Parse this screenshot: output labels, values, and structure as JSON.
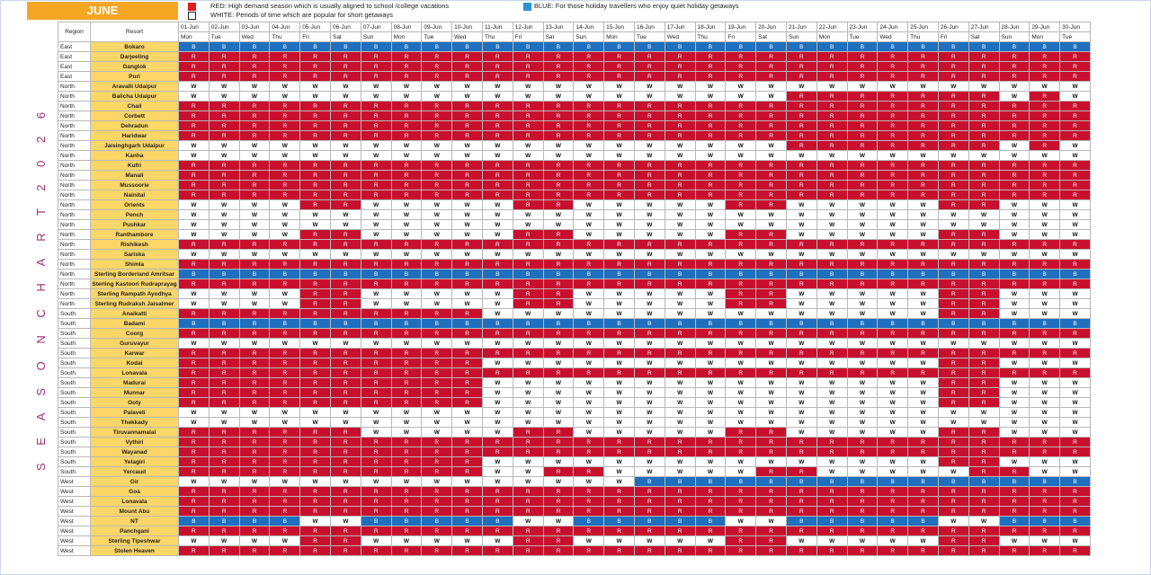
{
  "month": "JUNE",
  "vertical_title": "S E A S O N   C H A R T   2 0 2 6",
  "legend": {
    "red": {
      "text": "RED: High demand season which is usually aligned to school /college vacations",
      "color": "#c8102e"
    },
    "white": {
      "text": "WHITE: Periods of time which are popular for short getaways",
      "color": "#ffffff"
    },
    "blue": {
      "text": "BLUE: For those holiday travellers who enjoy quiet holiday getaways",
      "color": "#1f6fbf"
    }
  },
  "headers": {
    "region": "Region",
    "resort": "Resort"
  },
  "dates": [
    "01-Jun",
    "02-Jun",
    "03-Jun",
    "04-Jun",
    "05-Jun",
    "06-Jun",
    "07-Jun",
    "08-Jun",
    "09-Jun",
    "10-Jun",
    "11-Jun",
    "12-Jun",
    "13-Jun",
    "14-Jun",
    "15-Jun",
    "16-Jun",
    "17-Jun",
    "18-Jun",
    "19-Jun",
    "20-Jun",
    "21-Jun",
    "22-Jun",
    "23-Jun",
    "24-Jun",
    "25-Jun",
    "26-Jun",
    "27-Jun",
    "28-Jun",
    "29-Jun",
    "30-Jun"
  ],
  "days": [
    "Mon",
    "Tue",
    "Wed",
    "Thu",
    "Fri",
    "Sat",
    "Sun",
    "Mon",
    "Tue",
    "Wed",
    "Thu",
    "Fri",
    "Sat",
    "Sun",
    "Mon",
    "Tue",
    "Wed",
    "Thu",
    "Fri",
    "Sat",
    "Sun",
    "Mon",
    "Tue",
    "Wed",
    "Thu",
    "Fri",
    "Sat",
    "Sun",
    "Mon",
    "Tue"
  ],
  "rows": [
    {
      "region": "East",
      "resort": "Bokaro",
      "s": "BBBBBBBBBBBBBBBBBBBBBBBBBBBBBB"
    },
    {
      "region": "East",
      "resort": "Darjeeling",
      "s": "RRRRRRRRRRRRRRRRRRRRRRRRRRRRRR"
    },
    {
      "region": "East",
      "resort": "Gangtok",
      "s": "RRRRRRRRRRRRRRRRRRRRRRRRRRRRRR"
    },
    {
      "region": "East",
      "resort": "Puri",
      "s": "RRRRRRRRRRRRRRRRRRRRRRRRRRRRRR"
    },
    {
      "region": "North",
      "resort": "Aravalli Udaipur",
      "s": "WWWWWWWWWWWWWWWWWWWWWWWWWWWWWW"
    },
    {
      "region": "North",
      "resort": "Balicha Udaipur",
      "s": "WWWWWWWWWWWWWWWWWWWWRRRRRRRWRW"
    },
    {
      "region": "North",
      "resort": "Chail",
      "s": "RRRRRRRRRRRRRRRRRRRRRRRRRRRRRR"
    },
    {
      "region": "North",
      "resort": "Corbett",
      "s": "RRRRRRRRRRRRRRRRRRRRRRRRRRRRRR"
    },
    {
      "region": "North",
      "resort": "Dehradun",
      "s": "RRRRRRRRRRRRRRRRRRRRRRRRRRRRRR"
    },
    {
      "region": "North",
      "resort": "Haridwar",
      "s": "RRRRRRRRRRRRRRRRRRRRRRRRRRRRRR"
    },
    {
      "region": "North",
      "resort": "Jaisinghgarh Udaipur",
      "s": "WWWWWWWWWWWWWWWWWWWWRRRRRRRWRW"
    },
    {
      "region": "North",
      "resort": "Kanha",
      "s": "WWWWWWWWWWWWWWWWWWWWWWWWWWWWWW"
    },
    {
      "region": "North",
      "resort": "Kufri",
      "s": "RRRRRRRRRRRRRRRRRRRRRRRRRRRRRR"
    },
    {
      "region": "North",
      "resort": "Manali",
      "s": "RRRRRRRRRRRRRRRRRRRRRRRRRRRRRR"
    },
    {
      "region": "North",
      "resort": "Mussoorie",
      "s": "RRRRRRRRRRRRRRRRRRRRRRRRRRRRRR"
    },
    {
      "region": "North",
      "resort": "Nainital",
      "s": "RRRRRRRRRRRRRRRRRRRRRRRRRRRRRR"
    },
    {
      "region": "North",
      "resort": "Orients",
      "s": "WWWWRRWWWWWRRWWWWWRRWWWWWRRWWW"
    },
    {
      "region": "North",
      "resort": "Pench",
      "s": "WWWWWWWWWWWWWWWWWWWWWWWWWWWWWW"
    },
    {
      "region": "North",
      "resort": "Pushkar",
      "s": "WWWWWWWWWWWWWWWWWWWWWWWWWWWWWW"
    },
    {
      "region": "North",
      "resort": "Ranthambore",
      "s": "WWWWRRWWWWWRRWWWWWRRWWWWWRRWWW"
    },
    {
      "region": "North",
      "resort": "Rishikesh",
      "s": "RRRRRRRRRRRRRRRRRRRRRRRRRRRRRR"
    },
    {
      "region": "North",
      "resort": "Sariska",
      "s": "WWWWWWWWWWWWWWWWWWWWWWWWWWWWWW"
    },
    {
      "region": "North",
      "resort": "Shimla",
      "s": "RRRRRRRRRRRRRRRRRRRRRRRRRRRRRR"
    },
    {
      "region": "North",
      "resort": "Sterling Borderland Amritsar",
      "s": "BBBBBBBBBBBBBBBBBBBBBBBBBBBBBB"
    },
    {
      "region": "North",
      "resort": "Sterling Kastoori Rudraprayag",
      "s": "RRRRRRRRRRRRRRRRRRRRRRRRRRRRRR"
    },
    {
      "region": "North",
      "resort": "Sterling Rampath Ayodhya",
      "s": "WWWWRRWWWWWRRWWWWWRRWWWWWRRWWW"
    },
    {
      "region": "North",
      "resort": "Sterling Rudraksh Jaisalmer",
      "s": "WWWWRRWWWWWRRWWWWWRRWWWWWRRWWW"
    },
    {
      "region": "South",
      "resort": "Anaikatti",
      "s": "RRRRRRRRRRWWWWWWWWWWWWWWWRRWWW"
    },
    {
      "region": "South",
      "resort": "Badami",
      "s": "BBBBBBBBBBBBBBBBBBBBBBBBBBBBBB"
    },
    {
      "region": "South",
      "resort": "Coorg",
      "s": "RRRRRRRRRRRRRRRRRRRRRRRRRRRRRR"
    },
    {
      "region": "South",
      "resort": "Guruvayur",
      "s": "WWWWWWWWWWWWWWWWWWWWWWWWWWWWWW"
    },
    {
      "region": "South",
      "resort": "Karwar",
      "s": "RRRRRRRRRRRRRRRRRRRRRRRRRRRRRR"
    },
    {
      "region": "South",
      "resort": "Kodai",
      "s": "RRRRRRRRRRWWWWWWWWWWWWWWWRRWWW"
    },
    {
      "region": "South",
      "resort": "Lonavala",
      "s": "RRRRRRRRRRRRRRRRRRRRRRRRRRRRRR"
    },
    {
      "region": "South",
      "resort": "Madurai",
      "s": "RRRRRRRRRRWWWWWWWWWWWWWWWRRWWW"
    },
    {
      "region": "South",
      "resort": "Munnar",
      "s": "RRRRRRRRRRWWWWWWWWWWWWWWWRRWWW"
    },
    {
      "region": "South",
      "resort": "Ooty",
      "s": "RRRRRRRRRRWWWWWWWWWWWWWWWRRWWW"
    },
    {
      "region": "South",
      "resort": "Palaveli",
      "s": "WWWWWWWWWWWWWWWWWWWWWWWWWWWWWW"
    },
    {
      "region": "South",
      "resort": "Thekkady",
      "s": "WWWWWWWWWWWWWWWWWWWWWWWWWWWWWW"
    },
    {
      "region": "South",
      "resort": "Tiruvannamalai",
      "s": "RRRRRRWWWWWRRWWWWWRRWWWWWRRWWW"
    },
    {
      "region": "South",
      "resort": "Vythiri",
      "s": "RRRRRRRRRRRRRRRRRRRRRRRRRRRRRR"
    },
    {
      "region": "South",
      "resort": "Wayanad",
      "s": "RRRRRRRRRRRRRRRRRRRRRRRRRRRRRR"
    },
    {
      "region": "South",
      "resort": "Yelagiri",
      "s": "RRRRRRRRRRWWWWWWWWWWWWWWWRRWWW"
    },
    {
      "region": "South",
      "resort": "Yercaud",
      "s": "RRRRRRRRRRWWRRWWWWWRRWWWWWRRWW"
    },
    {
      "region": "West",
      "resort": "Gir",
      "s": "WWWWWWWWWWWWWWWBBBBBBBBBBBBBBB"
    },
    {
      "region": "West",
      "resort": "Goa",
      "s": "RRRRRRRRRRRRRRRRRRRRRRRRRRRRRR"
    },
    {
      "region": "West",
      "resort": "Lonavala",
      "s": "RRRRRRRRRRRRRRRRRRRRRRRRRRRRRR"
    },
    {
      "region": "West",
      "resort": "Mount Abu",
      "s": "RRRRRRRRRRRRRRRRRRRRRRRRRRRRRR"
    },
    {
      "region": "West",
      "resort": "NT",
      "s": "BBBBWWBBBBBWWBBBBBWWBBBBBWWBBB"
    },
    {
      "region": "West",
      "resort": "Panchgani",
      "s": "RRRRRRRRRRRRRRRRRRRRRRRRRRRRRR"
    },
    {
      "region": "West",
      "resort": "Sterling Tipeshwar",
      "s": "WWWWRRWWWWWRRWWWWWRRWWWWWRRWWW"
    },
    {
      "region": "West",
      "resort": "Stolen Heaven",
      "s": "RRRRRRRRRRRRRRRRRRRRRRRRRRRRRR"
    }
  ]
}
